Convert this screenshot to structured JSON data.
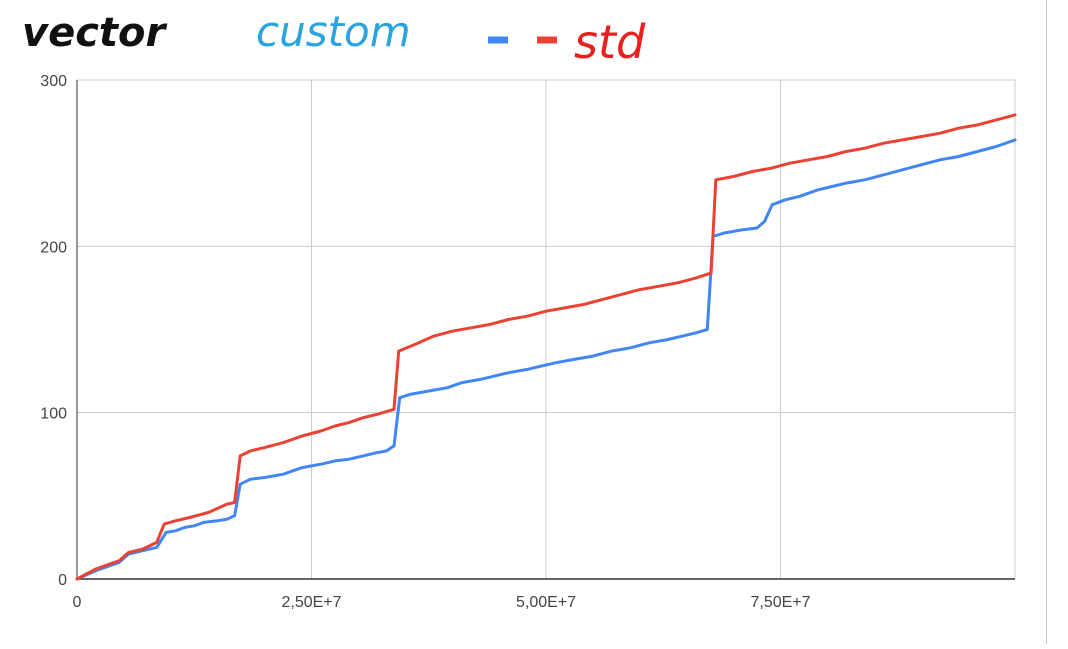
{
  "chart_data": {
    "type": "line",
    "annotations": [
      {
        "text": "vector",
        "color": "#111111"
      },
      {
        "text": "custom",
        "color": "#2aa3e0"
      },
      {
        "text": "std",
        "color": "#e8211f"
      }
    ],
    "legend_markers": [
      {
        "color": "#4285f4"
      },
      {
        "color": "#ea4335"
      }
    ],
    "xlim": [
      0,
      100000000
    ],
    "ylim": [
      0,
      300
    ],
    "x_ticks": [
      0,
      25000000,
      50000000,
      75000000
    ],
    "x_tick_labels": [
      "0",
      "2,50E+7",
      "5,00E+7",
      "7,50E+7"
    ],
    "y_ticks": [
      0,
      100,
      200,
      300
    ],
    "y_tick_labels": [
      "0",
      "100",
      "200",
      "300"
    ],
    "grid": true,
    "series": [
      {
        "color": "#4285f4",
        "points": [
          [
            0,
            0
          ],
          [
            2000000,
            5
          ],
          [
            3500000,
            8
          ],
          [
            4500000,
            10
          ],
          [
            5500000,
            15
          ],
          [
            7000000,
            17
          ],
          [
            8500000,
            19
          ],
          [
            9500000,
            28
          ],
          [
            10500000,
            29
          ],
          [
            11500000,
            31
          ],
          [
            12500000,
            32
          ],
          [
            13500000,
            34
          ],
          [
            15000000,
            35
          ],
          [
            16000000,
            36
          ],
          [
            16800000,
            38
          ],
          [
            17400000,
            57
          ],
          [
            18500000,
            60
          ],
          [
            20000000,
            61
          ],
          [
            22000000,
            63
          ],
          [
            24000000,
            67
          ],
          [
            26000000,
            69
          ],
          [
            27500000,
            71
          ],
          [
            29000000,
            72
          ],
          [
            30500000,
            74
          ],
          [
            32000000,
            76
          ],
          [
            33000000,
            77
          ],
          [
            33800000,
            80
          ],
          [
            34400000,
            109
          ],
          [
            35500000,
            111
          ],
          [
            37500000,
            113
          ],
          [
            39500000,
            115
          ],
          [
            41000000,
            118
          ],
          [
            43000000,
            120
          ],
          [
            44500000,
            122
          ],
          [
            46000000,
            124
          ],
          [
            48000000,
            126
          ],
          [
            49500000,
            128
          ],
          [
            51000000,
            130
          ],
          [
            53000000,
            132
          ],
          [
            55000000,
            134
          ],
          [
            57000000,
            137
          ],
          [
            59000000,
            139
          ],
          [
            61000000,
            142
          ],
          [
            63000000,
            144
          ],
          [
            64500000,
            146
          ],
          [
            66000000,
            148
          ],
          [
            67200000,
            150
          ],
          [
            67800000,
            206
          ],
          [
            69000000,
            208
          ],
          [
            71000000,
            210
          ],
          [
            72500000,
            211
          ],
          [
            73300000,
            215
          ],
          [
            74100000,
            225
          ],
          [
            75500000,
            228
          ],
          [
            77000000,
            230
          ],
          [
            79000000,
            234
          ],
          [
            80500000,
            236
          ],
          [
            82000000,
            238
          ],
          [
            84000000,
            240
          ],
          [
            86000000,
            243
          ],
          [
            88000000,
            246
          ],
          [
            90000000,
            249
          ],
          [
            92000000,
            252
          ],
          [
            94000000,
            254
          ],
          [
            96000000,
            257
          ],
          [
            98000000,
            260
          ],
          [
            100000000,
            264
          ]
        ]
      },
      {
        "color": "#ea4335",
        "points": [
          [
            0,
            0
          ],
          [
            2000000,
            6
          ],
          [
            3500000,
            9
          ],
          [
            4500000,
            11
          ],
          [
            5500000,
            16
          ],
          [
            7000000,
            18
          ],
          [
            8500000,
            22
          ],
          [
            9300000,
            33
          ],
          [
            10500000,
            35
          ],
          [
            12000000,
            37
          ],
          [
            14000000,
            40
          ],
          [
            16000000,
            45
          ],
          [
            16800000,
            46
          ],
          [
            17400000,
            74
          ],
          [
            18500000,
            77
          ],
          [
            20000000,
            79
          ],
          [
            22000000,
            82
          ],
          [
            24000000,
            86
          ],
          [
            26000000,
            89
          ],
          [
            27500000,
            92
          ],
          [
            29000000,
            94
          ],
          [
            30500000,
            97
          ],
          [
            32000000,
            99
          ],
          [
            33800000,
            102
          ],
          [
            34300000,
            137
          ],
          [
            36000000,
            141
          ],
          [
            38000000,
            146
          ],
          [
            40000000,
            149
          ],
          [
            42000000,
            151
          ],
          [
            44000000,
            153
          ],
          [
            46000000,
            156
          ],
          [
            48000000,
            158
          ],
          [
            50000000,
            161
          ],
          [
            52000000,
            163
          ],
          [
            54000000,
            165
          ],
          [
            56000000,
            168
          ],
          [
            58000000,
            171
          ],
          [
            60000000,
            174
          ],
          [
            62000000,
            176
          ],
          [
            64000000,
            178
          ],
          [
            66000000,
            181
          ],
          [
            67600000,
            184
          ],
          [
            68100000,
            240
          ],
          [
            70000000,
            242
          ],
          [
            72000000,
            245
          ],
          [
            74000000,
            247
          ],
          [
            76000000,
            250
          ],
          [
            78000000,
            252
          ],
          [
            80000000,
            254
          ],
          [
            82000000,
            257
          ],
          [
            84000000,
            259
          ],
          [
            86000000,
            262
          ],
          [
            88000000,
            264
          ],
          [
            90000000,
            266
          ],
          [
            92000000,
            268
          ],
          [
            94000000,
            271
          ],
          [
            96000000,
            273
          ],
          [
            98000000,
            276
          ],
          [
            100000000,
            279
          ]
        ]
      }
    ]
  }
}
